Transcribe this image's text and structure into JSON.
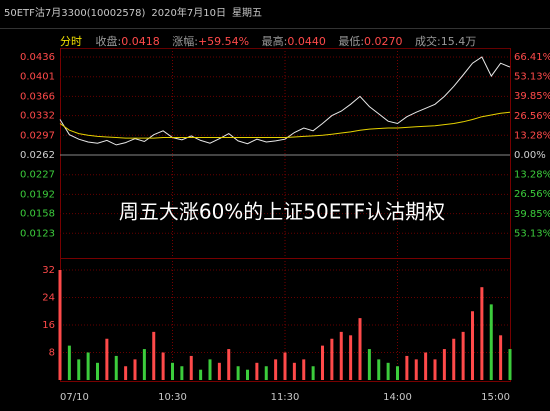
{
  "chart_data": {
    "type": "intraday",
    "stock_title": "50ETF沽7月3300(10002578)",
    "date": "2020年7月10日",
    "weekday": "星期五",
    "period": "分时",
    "stats": [
      {
        "label": "收盘:",
        "value": "0.0418"
      },
      {
        "label": "涨幅:",
        "value": "+59.54%"
      },
      {
        "label": "最高:",
        "value": "0.0440"
      },
      {
        "label": "最低:",
        "value": "0.0270"
      },
      {
        "label": "成交:",
        "value": "15.4万"
      }
    ],
    "annotation": "周五大涨60%的上证50ETF认沽期权",
    "categories": [
      "07/10",
      null,
      null,
      null,
      null,
      null,
      null,
      null,
      null,
      null,
      null,
      null,
      "10:30",
      null,
      null,
      null,
      null,
      null,
      null,
      null,
      null,
      null,
      null,
      null,
      "11:30",
      null,
      null,
      null,
      null,
      null,
      null,
      null,
      null,
      null,
      null,
      null,
      "14:00",
      null,
      null,
      null,
      null,
      null,
      null,
      null,
      null,
      null,
      null,
      null,
      "15:00"
    ],
    "series": [
      {
        "color": "#e8e8e8",
        "values": [
          0.0325,
          0.0298,
          0.029,
          0.0285,
          0.0283,
          0.0288,
          0.028,
          0.0284,
          0.0291,
          0.0286,
          0.0298,
          0.0305,
          0.0293,
          0.0289,
          0.0296,
          0.0288,
          0.0283,
          0.0291,
          0.03,
          0.0287,
          0.0282,
          0.029,
          0.0285,
          0.0287,
          0.029,
          0.0302,
          0.031,
          0.0305,
          0.0318,
          0.0332,
          0.034,
          0.0352,
          0.0366,
          0.0348,
          0.0335,
          0.0322,
          0.0318,
          0.033,
          0.0338,
          0.0345,
          0.0352,
          0.0366,
          0.0384,
          0.0404,
          0.0425,
          0.0436,
          0.0402,
          0.0425,
          0.0418
        ]
      },
      {
        "color": "#e6d200",
        "values": [
          0.0318,
          0.0306,
          0.03,
          0.0297,
          0.0295,
          0.0294,
          0.0293,
          0.0292,
          0.0292,
          0.0292,
          0.0292,
          0.0293,
          0.0293,
          0.0293,
          0.0293,
          0.0293,
          0.0293,
          0.0293,
          0.0293,
          0.0293,
          0.0293,
          0.0293,
          0.0293,
          0.0293,
          0.0293,
          0.0294,
          0.0295,
          0.0296,
          0.0297,
          0.0299,
          0.0301,
          0.0303,
          0.0306,
          0.0308,
          0.0309,
          0.031,
          0.031,
          0.0311,
          0.0312,
          0.0313,
          0.0314,
          0.0316,
          0.0318,
          0.0321,
          0.0325,
          0.033,
          0.0333,
          0.0336,
          0.0338
        ]
      }
    ],
    "volume": [
      32,
      10,
      6,
      8,
      5,
      12,
      7,
      4,
      6,
      9,
      14,
      8,
      5,
      4,
      7,
      3,
      6,
      5,
      9,
      4,
      3,
      5,
      4,
      6,
      8,
      5,
      6,
      4,
      10,
      12,
      14,
      13,
      18,
      9,
      6,
      5,
      4,
      7,
      6,
      8,
      6,
      9,
      12,
      14,
      20,
      27,
      22,
      13,
      9
    ],
    "ylim": [
      0.0088,
      0.0436
    ],
    "yticks": [
      0.0436,
      0.0401,
      0.0366,
      0.0332,
      0.0297,
      0.0262,
      0.0227,
      0.0192,
      0.0158,
      0.0123
    ],
    "y2lim": [
      -66.41,
      66.41
    ],
    "y2ticks": [
      {
        "value": 66.41,
        "label": "66.41%"
      },
      {
        "value": 53.13,
        "label": "53.13%"
      },
      {
        "value": 39.85,
        "label": "39.85%"
      },
      {
        "value": 26.56,
        "label": "26.56%"
      },
      {
        "value": 13.28,
        "label": "13.28%"
      },
      {
        "value": 0,
        "label": "0.00%"
      },
      {
        "value": -13.28,
        "label": "13.28%"
      },
      {
        "value": -26.56,
        "label": "26.56%"
      },
      {
        "value": -39.85,
        "label": "39.85%"
      },
      {
        "value": -53.13,
        "label": "53.13%"
      }
    ],
    "volume_ylim": [
      0,
      32
    ],
    "volume_yticks": [
      32,
      24,
      16,
      8
    ],
    "up_color": "#ff4a4a",
    "down_color": "#3ccc3c",
    "grid": true
  }
}
